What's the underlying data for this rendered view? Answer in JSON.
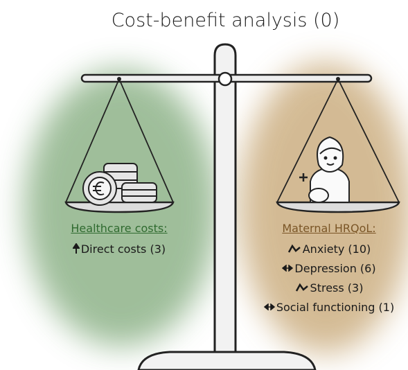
{
  "title": "Cost-benefit analysis (0)",
  "left": {
    "heading": "Healthcare costs:",
    "items": [
      "Direct costs (3)"
    ]
  },
  "right": {
    "heading": "Maternal HRQoL:",
    "items": [
      "Anxiety (10)",
      "Depression (6)",
      "Stress (3)",
      "Social functioning (1)"
    ]
  }
}
